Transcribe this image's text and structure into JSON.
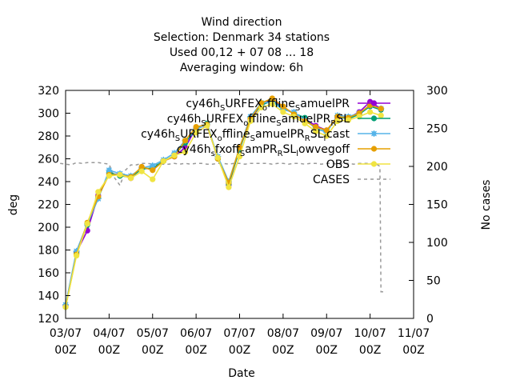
{
  "chart_data": {
    "type": "line",
    "title_lines": [
      "Wind direction",
      "Selection: Denmark      34 stations",
      "Used  00,12  + 07 08 ... 18",
      "Averaging window:  6h"
    ],
    "xlabel": "Date",
    "ylabel": "deg",
    "y2label": "No cases",
    "xlim": [
      0,
      64
    ],
    "ylim": [
      120,
      320
    ],
    "y2lim": [
      0,
      300
    ],
    "xticks": [
      {
        "x": 0,
        "line1": "03/07",
        "line2": "00Z"
      },
      {
        "x": 8,
        "line1": "04/07",
        "line2": "00Z"
      },
      {
        "x": 16,
        "line1": "05/07",
        "line2": "00Z"
      },
      {
        "x": 24,
        "line1": "06/07",
        "line2": "00Z"
      },
      {
        "x": 32,
        "line1": "07/07",
        "line2": "00Z"
      },
      {
        "x": 40,
        "line1": "08/07",
        "line2": "00Z"
      },
      {
        "x": 48,
        "line1": "09/07",
        "line2": "00Z"
      },
      {
        "x": 56,
        "line1": "10/07",
        "line2": "00Z"
      },
      {
        "x": 64,
        "line1": "11/07",
        "line2": "00Z"
      }
    ],
    "yticks": [
      "120",
      "140",
      "160",
      "180",
      "200",
      "220",
      "240",
      "260",
      "280",
      "300",
      "320"
    ],
    "y2ticks": [
      "0",
      "50",
      "100",
      "150",
      "200",
      "250",
      "300"
    ],
    "x": [
      0,
      2,
      4,
      6,
      8,
      10,
      12,
      14,
      16,
      18,
      20,
      22,
      24,
      26,
      28,
      30,
      32,
      34,
      36,
      38,
      40,
      42,
      44,
      46,
      48,
      50,
      52,
      54,
      56,
      58
    ],
    "series": [
      {
        "name": "cy46h_SURFEX_offline_SamuelPR",
        "color": "#9400d3",
        "marker": "dot",
        "values": [
          131,
          178,
          197,
          228,
          247,
          246,
          243,
          252,
          251,
          258,
          262,
          270,
          287,
          289,
          261,
          237,
          269,
          294,
          308,
          312,
          305,
          300,
          295,
          289,
          285,
          296,
          296,
          301,
          310,
          304
        ]
      },
      {
        "name": "cy46h_SURFEX_offline_SamuelPR_RSL",
        "color": "#009e73",
        "marker": "dot",
        "values": [
          130,
          177,
          202,
          226,
          248,
          245,
          244,
          251,
          252,
          258,
          263,
          274,
          286,
          291,
          260,
          238,
          268,
          296,
          307,
          311,
          304,
          300,
          296,
          286,
          284,
          297,
          295,
          299,
          306,
          303
        ]
      },
      {
        "name": "cy46h_SURFEX_offline_SamuelPR_RSL_fcast",
        "color": "#56b4e9",
        "marker": "star",
        "values": [
          132,
          179,
          203,
          225,
          250,
          247,
          245,
          252,
          254,
          259,
          265,
          276,
          286,
          290,
          262,
          240,
          270,
          297,
          309,
          310,
          303,
          301,
          294,
          287,
          283,
          298,
          297,
          300,
          307,
          304
        ]
      },
      {
        "name": "cy46h_sfxoff_SamPR_RSL_lowvegoff",
        "color": "#e69f00",
        "marker": "dot",
        "values": [
          130,
          176,
          204,
          227,
          246,
          246,
          244,
          253,
          250,
          258,
          262,
          276,
          288,
          290,
          260,
          239,
          270,
          295,
          309,
          313,
          306,
          299,
          293,
          288,
          285,
          297,
          296,
          300,
          307,
          304
        ]
      },
      {
        "name": "OBS",
        "color": "#f0e442",
        "marker": "dot",
        "values": [
          130,
          175,
          203,
          231,
          245,
          246,
          243,
          249,
          242,
          258,
          263,
          266,
          283,
          289,
          261,
          235,
          262,
          293,
          305,
          308,
          301,
          297,
          291,
          284,
          280,
          293,
          294,
          297,
          301,
          298
        ]
      }
    ],
    "cases": {
      "name": "CASES",
      "color": "#999999",
      "dash": true,
      "x": [
        -1,
        0,
        1,
        2,
        3,
        4,
        5,
        6,
        7,
        8,
        9,
        10,
        11,
        12,
        13,
        14,
        15,
        16,
        17,
        18,
        19,
        20,
        21,
        22,
        23,
        24,
        25,
        26,
        27,
        28,
        29,
        30,
        31,
        32,
        33,
        34,
        35,
        36,
        37,
        38,
        39,
        40,
        41,
        42,
        43,
        44,
        45,
        46,
        47,
        48,
        49,
        50,
        51,
        52,
        53,
        54,
        55,
        56,
        57,
        57.8,
        58,
        59
      ],
      "values": [
        204,
        203,
        202,
        205,
        204,
        205,
        205,
        205,
        204,
        203,
        185,
        175,
        195,
        202,
        202,
        204,
        204,
        203,
        203,
        203,
        203,
        204,
        203,
        204,
        203,
        204,
        204,
        203,
        203,
        204,
        204,
        203,
        204,
        204,
        203,
        204,
        204,
        204,
        204,
        203,
        204,
        204,
        203,
        204,
        204,
        203,
        204,
        204,
        203,
        204,
        204,
        203,
        204,
        204,
        203,
        204,
        204,
        204,
        204,
        200,
        35,
        35
      ]
    },
    "legend": {
      "placement": "inside-top-right",
      "entries": [
        "cy46h_SURFEX_offline_SamuelPR",
        "cy46h_SURFEX_offline_SamuelPR_RSL",
        "cy46h_SURFEX_offline_SamuelPR_RSL_fcast",
        "cy46h_sfxoff_SamPR_RSL_lowvegoff",
        "OBS",
        "CASES"
      ]
    },
    "grid": false
  }
}
